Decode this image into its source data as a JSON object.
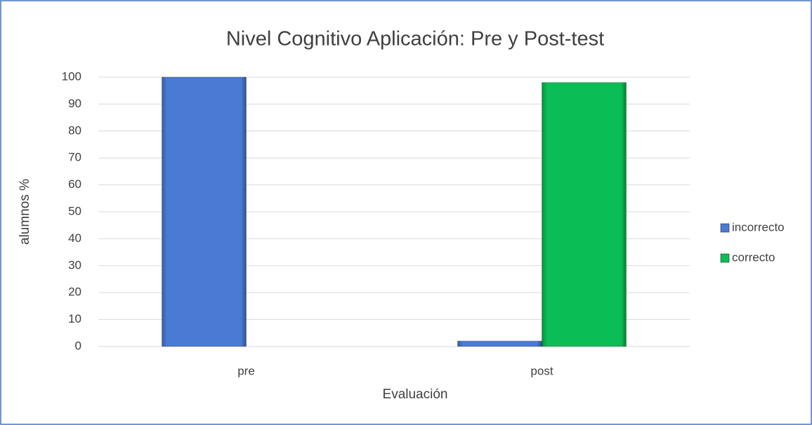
{
  "chart_data": {
    "type": "bar",
    "title": "Nivel Cognitivo Aplicación: Pre y Post-test",
    "x_label": "Evaluación",
    "y_label": "alumnos %",
    "categories": [
      "pre",
      "post"
    ],
    "series": [
      {
        "name": "incorrecto",
        "color": "#4a7bd4",
        "values": [
          100,
          2
        ]
      },
      {
        "name": "correcto",
        "color": "#0bbd55",
        "values": [
          0,
          98
        ]
      }
    ],
    "ylim": [
      0,
      100
    ],
    "yticks": [
      0,
      10,
      20,
      30,
      40,
      50,
      60,
      70,
      80,
      90,
      100
    ],
    "grid": true,
    "legend": "right"
  }
}
